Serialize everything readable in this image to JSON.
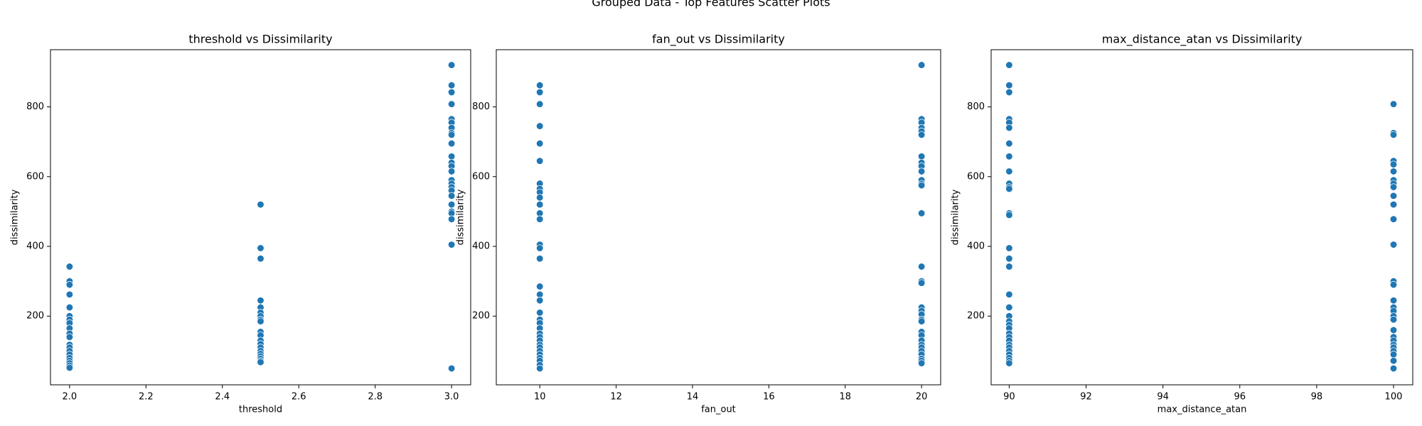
{
  "title": "Grouped Data - Top Features Scatter Plots",
  "chart_data": [
    {
      "type": "scatter",
      "title": "threshold vs Dissimilarity",
      "x_label": "threshold",
      "y_label": "dissimilarity",
      "color": "#1f77b4",
      "xlim": [
        1.95,
        3.05
      ],
      "ylim": [
        3,
        964
      ],
      "xticks": [
        {
          "value": 2.0,
          "label": "2.0"
        },
        {
          "value": 2.2,
          "label": "2.2"
        },
        {
          "value": 2.4,
          "label": "2.4"
        },
        {
          "value": 2.6,
          "label": "2.6"
        },
        {
          "value": 2.8,
          "label": "2.8"
        },
        {
          "value": 3.0,
          "label": "3.0"
        }
      ],
      "yticks": [
        200,
        400,
        600,
        800
      ],
      "x": [
        2,
        2,
        2,
        2,
        2,
        2,
        2,
        2,
        2,
        2,
        2,
        2,
        2,
        2,
        2,
        2,
        2,
        2,
        2,
        2,
        2.5,
        2.5,
        2.5,
        2.5,
        2.5,
        2.5,
        2.5,
        2.5,
        2.5,
        2.5,
        2.5,
        2.5,
        2.5,
        2.5,
        2.5,
        2.5,
        2.5,
        2.5,
        2.5,
        2.5,
        3,
        3,
        3,
        3,
        3,
        3,
        3,
        3,
        3,
        3,
        3,
        3,
        3,
        3,
        3,
        3,
        3,
        3,
        3,
        3,
        3,
        3,
        3,
        3,
        3
      ],
      "values": [
        342,
        300,
        290,
        262,
        225,
        200,
        190,
        180,
        165,
        150,
        140,
        118,
        110,
        100,
        90,
        80,
        72,
        65,
        58,
        52,
        520,
        395,
        365,
        245,
        225,
        210,
        200,
        190,
        185,
        155,
        145,
        130,
        120,
        110,
        100,
        92,
        85,
        78,
        72,
        68,
        920,
        862,
        842,
        808,
        765,
        755,
        740,
        725,
        720,
        695,
        658,
        640,
        630,
        615,
        590,
        580,
        570,
        560,
        545,
        520,
        500,
        495,
        478,
        405,
        50
      ]
    },
    {
      "type": "scatter",
      "title": "fan_out vs Dissimilarity",
      "x_label": "fan_out",
      "y_label": "dissimilarity",
      "color": "#1f77b4",
      "xlim": [
        8.86,
        20.5
      ],
      "ylim": [
        3,
        964
      ],
      "xticks": [
        10,
        12,
        14,
        16,
        18,
        20
      ],
      "yticks": [
        200,
        400,
        600,
        800
      ],
      "x": [
        10,
        10,
        10,
        10,
        10,
        10,
        10,
        10,
        10,
        10,
        10,
        10,
        10,
        10,
        10,
        10,
        10,
        10,
        10,
        10,
        10,
        10,
        10,
        10,
        10,
        10,
        10,
        10,
        10,
        10,
        10,
        10,
        10,
        10,
        20,
        20,
        20,
        20,
        20,
        20,
        20,
        20,
        20,
        20,
        20,
        20,
        20,
        20,
        20,
        20,
        20,
        20,
        20,
        20,
        20,
        20,
        20,
        20,
        20,
        20,
        20,
        20,
        20,
        20,
        20,
        20
      ],
      "values": [
        862,
        842,
        808,
        745,
        695,
        645,
        580,
        565,
        555,
        540,
        520,
        495,
        478,
        405,
        395,
        365,
        285,
        262,
        245,
        210,
        190,
        180,
        165,
        150,
        140,
        130,
        118,
        110,
        100,
        90,
        80,
        72,
        60,
        50,
        920,
        765,
        755,
        740,
        730,
        720,
        658,
        640,
        630,
        615,
        590,
        580,
        575,
        495,
        342,
        300,
        295,
        225,
        215,
        205,
        190,
        185,
        155,
        145,
        130,
        118,
        110,
        100,
        90,
        78,
        72,
        65
      ]
    },
    {
      "type": "scatter",
      "title": "max_distance_atan vs Dissimilarity",
      "x_label": "max_distance_atan",
      "y_label": "dissimilarity",
      "color": "#1f77b4",
      "xlim": [
        89.53,
        100.5
      ],
      "ylim": [
        3,
        964
      ],
      "xticks": [
        90,
        92,
        94,
        96,
        98,
        100
      ],
      "yticks": [
        200,
        400,
        600,
        800
      ],
      "x": [
        90,
        90,
        90,
        90,
        90,
        90,
        90,
        90,
        90,
        90,
        90,
        90,
        90,
        90,
        90,
        90,
        90,
        90,
        90,
        90,
        90,
        90,
        90,
        90,
        90,
        90,
        90,
        90,
        90,
        90,
        90,
        90,
        90,
        100,
        100,
        100,
        100,
        100,
        100,
        100,
        100,
        100,
        100,
        100,
        100,
        100,
        100,
        100,
        100,
        100,
        100,
        100,
        100,
        100,
        100,
        100,
        100,
        100,
        100,
        100,
        100,
        100
      ],
      "values": [
        920,
        862,
        842,
        765,
        755,
        740,
        695,
        658,
        615,
        580,
        570,
        565,
        495,
        490,
        395,
        365,
        342,
        262,
        225,
        200,
        185,
        175,
        165,
        150,
        140,
        130,
        118,
        110,
        100,
        90,
        80,
        72,
        65,
        808,
        725,
        720,
        645,
        635,
        615,
        590,
        580,
        570,
        545,
        520,
        478,
        405,
        300,
        290,
        245,
        225,
        215,
        200,
        190,
        160,
        140,
        130,
        118,
        110,
        100,
        90,
        72,
        50
      ]
    }
  ]
}
